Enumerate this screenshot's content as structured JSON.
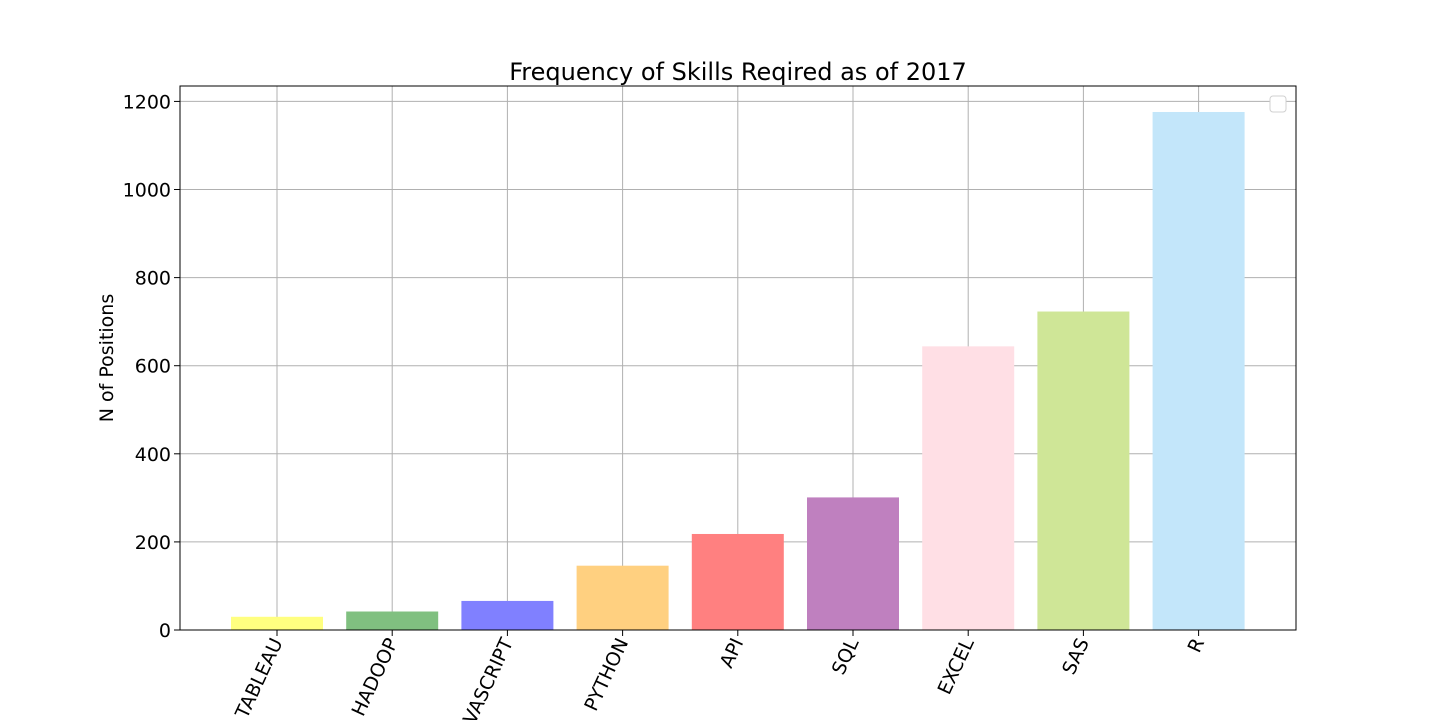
{
  "chart_data": {
    "type": "bar",
    "title": "Frequency of Skills Reqired as of 2017",
    "xlabel": "",
    "ylabel": "N of Positions",
    "categories": [
      "TABLEAU",
      "HADOOP",
      "JAVASCRIPT",
      "PYTHON",
      "API",
      "SQL",
      "EXCEL",
      "SAS",
      "R"
    ],
    "values": [
      30,
      42,
      66,
      146,
      218,
      301,
      644,
      723,
      1176
    ],
    "colors": [
      "#ffff80",
      "#80c080",
      "#8080ff",
      "#ffd080",
      "#ff8080",
      "#bf80bf",
      "#ffdfe5",
      "#cfe697",
      "#c3e6fa"
    ],
    "ylim": [
      0,
      1235
    ],
    "yticks": [
      0,
      200,
      400,
      600,
      800,
      1000,
      1200
    ],
    "grid": true,
    "legend": "top-right"
  }
}
